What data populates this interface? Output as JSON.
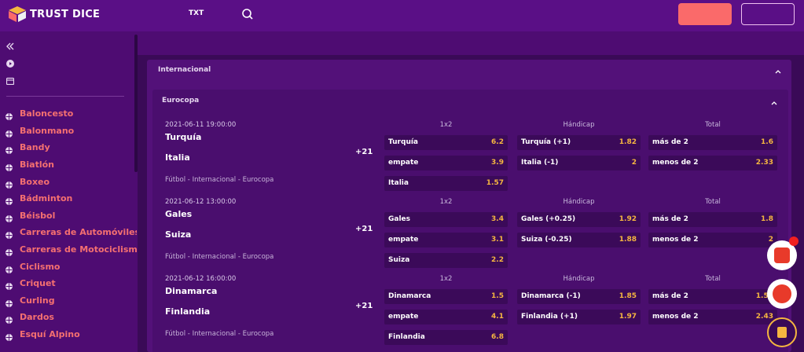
{
  "header": {
    "brand": "TRUST DICE",
    "lang": "TXT",
    "colors": {
      "bg": "#5a0f86",
      "login": "#fa6a6a"
    }
  },
  "sidebar": {
    "icons": [
      "collapse-icon",
      "play-icon",
      "calendar-icon"
    ],
    "sports": [
      {
        "label": "Baloncesto",
        "icon": "basketball-icon"
      },
      {
        "label": "Balonmano",
        "icon": "handball-icon"
      },
      {
        "label": "Bandy",
        "icon": "bandy-icon"
      },
      {
        "label": "Biatlón",
        "icon": "biathlon-icon"
      },
      {
        "label": "Boxeo",
        "icon": "boxing-icon"
      },
      {
        "label": "Bádminton",
        "icon": "badminton-icon"
      },
      {
        "label": "Béisbol",
        "icon": "baseball-icon"
      },
      {
        "label": "Carreras de Automóviles de",
        "icon": "car-icon"
      },
      {
        "label": "Carreras de Motociclismo",
        "icon": "motorcycle-icon"
      },
      {
        "label": "Ciclismo",
        "icon": "bicycle-icon"
      },
      {
        "label": "Criquet",
        "icon": "cricket-icon"
      },
      {
        "label": "Curling",
        "icon": "curling-icon"
      },
      {
        "label": "Dardos",
        "icon": "darts-icon"
      },
      {
        "label": "Esquí Alpino",
        "icon": "ski-icon"
      }
    ]
  },
  "main": {
    "section_title": "Internacional",
    "league_title": "Eurocopa",
    "matches": [
      {
        "date": "2021-06-11 19:00:00",
        "home": "Turquía",
        "away": "Italia",
        "meta": "Fútbol - Internacional - Eurocopa",
        "more": "+21",
        "markets": {
          "h1x2": "1x2",
          "hhand": "Hándicap",
          "htotal": "Total",
          "x2": [
            [
              "Turquía",
              "6.2"
            ],
            [
              "empate",
              "3.9"
            ],
            [
              "Italia",
              "1.57"
            ]
          ],
          "hand": [
            [
              "Turquía (+1)",
              "1.82"
            ],
            [
              "Italia (-1)",
              "2"
            ]
          ],
          "total": [
            [
              "más de 2",
              "1.6"
            ],
            [
              "menos de 2",
              "2.33"
            ]
          ]
        }
      },
      {
        "date": "2021-06-12 13:00:00",
        "home": "Gales",
        "away": "Suiza",
        "meta": "Fútbol - Internacional - Eurocopa",
        "more": "+21",
        "markets": {
          "h1x2": "1x2",
          "hhand": "Hándicap",
          "htotal": "Total",
          "x2": [
            [
              "Gales",
              "3.4"
            ],
            [
              "empate",
              "3.1"
            ],
            [
              "Suiza",
              "2.2"
            ]
          ],
          "hand": [
            [
              "Gales (+0.25)",
              "1.92"
            ],
            [
              "Suiza (-0.25)",
              "1.88"
            ]
          ],
          "total": [
            [
              "más de 2",
              "1.8"
            ],
            [
              "menos de 2",
              "2"
            ]
          ]
        }
      },
      {
        "date": "2021-06-12 16:00:00",
        "home": "Dinamarca",
        "away": "Finlandia",
        "meta": "Fútbol - Internacional - Eurocopa",
        "more": "+21",
        "markets": {
          "h1x2": "1x2",
          "hhand": "Hándicap",
          "htotal": "Total",
          "x2": [
            [
              "Dinamarca",
              "1.5"
            ],
            [
              "empate",
              "4.1"
            ],
            [
              "Finlandia",
              "6.8"
            ]
          ],
          "hand": [
            [
              "Dinamarca (-1)",
              "1.85"
            ],
            [
              "Finlandia (+1)",
              "1.97"
            ]
          ],
          "total": [
            [
              "más de 2",
              "1.54"
            ],
            [
              "menos de 2",
              "2.43"
            ]
          ]
        }
      }
    ]
  }
}
